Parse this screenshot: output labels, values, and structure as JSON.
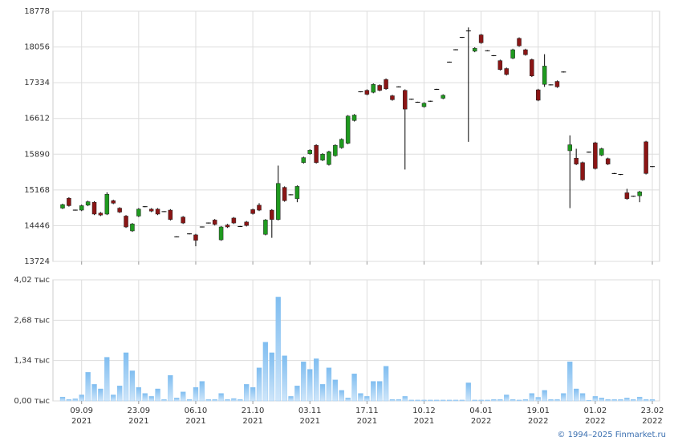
{
  "chart_data": [
    {
      "type": "candlestick",
      "up_color": "#1f9a1f",
      "down_color": "#8b1515",
      "grid": true,
      "ylim": [
        13724,
        18778
      ],
      "yticks": [
        13724,
        14446,
        15168,
        15890,
        16612,
        17334,
        18056,
        18778
      ],
      "open": [
        14800,
        15000,
        14760,
        14760,
        14860,
        14920,
        14700,
        14680,
        14950,
        14800,
        14640,
        14340,
        14640,
        14830,
        14780,
        14780,
        14730,
        14760,
        14220,
        14620,
        14280,
        14260,
        14420,
        14500,
        14560,
        14160,
        14460,
        14600,
        14430,
        14520,
        14770,
        14860,
        14270,
        14760,
        14570,
        15220,
        15070,
        14990,
        15720,
        15900,
        16070,
        15770,
        15680,
        15860,
        16020,
        16110,
        16570,
        17150,
        17180,
        17140,
        17280,
        17400,
        17070,
        17250,
        17180,
        17000,
        16940,
        16850,
        16960,
        17200,
        17020,
        17750,
        18000,
        18250,
        18380,
        17970,
        18300,
        17980,
        17880,
        17780,
        17620,
        17830,
        18230,
        18000,
        17800,
        17190,
        17300,
        17290,
        17360,
        17550,
        15960,
        15810,
        15720,
        15930,
        16120,
        15870,
        15800,
        15500,
        15480,
        15110,
        15040,
        15050,
        16140,
        15640
      ],
      "high": [
        14890,
        15020,
        14770,
        14870,
        14950,
        14940,
        14720,
        15120,
        14970,
        14820,
        14660,
        14500,
        14800,
        14840,
        14800,
        14800,
        14740,
        14780,
        14230,
        14640,
        14290,
        14280,
        14430,
        14510,
        14580,
        14440,
        14480,
        14620,
        14440,
        14540,
        14790,
        14900,
        14580,
        14780,
        15660,
        15240,
        15080,
        15260,
        15840,
        15990,
        16090,
        15910,
        15960,
        16090,
        16210,
        16680,
        16700,
        17160,
        17200,
        17320,
        17300,
        17420,
        17090,
        17260,
        17200,
        17010,
        16950,
        16940,
        16970,
        17210,
        17100,
        17760,
        18010,
        18260,
        18450,
        18050,
        18320,
        17990,
        17890,
        17800,
        17640,
        18020,
        18250,
        18020,
        17820,
        17210,
        17910,
        17300,
        17380,
        17560,
        16270,
        16000,
        15740,
        15940,
        16140,
        16020,
        15820,
        15510,
        15490,
        15190,
        15050,
        15150,
        16160,
        15650
      ],
      "low": [
        14780,
        14830,
        14750,
        14740,
        14840,
        14660,
        14640,
        14660,
        14880,
        14700,
        14400,
        14320,
        14620,
        14820,
        14720,
        14660,
        14720,
        14550,
        14210,
        14480,
        14270,
        14030,
        14410,
        14490,
        14450,
        14140,
        14400,
        14480,
        14420,
        14430,
        14670,
        14740,
        14250,
        14200,
        14550,
        14930,
        15060,
        14920,
        15700,
        15880,
        15700,
        15750,
        15660,
        15840,
        16000,
        16090,
        16550,
        17140,
        17080,
        17120,
        17160,
        17190,
        16970,
        17240,
        15580,
        16990,
        16930,
        16830,
        16950,
        17190,
        17000,
        17740,
        17990,
        18240,
        16140,
        17950,
        18120,
        17970,
        17870,
        17580,
        17480,
        17810,
        18060,
        17880,
        17450,
        16960,
        17250,
        17280,
        17230,
        17540,
        14800,
        15670,
        15350,
        15920,
        15580,
        15850,
        15670,
        15490,
        15470,
        14970,
        15030,
        14920,
        15480,
        15630
      ],
      "close": [
        14870,
        14850,
        14760,
        14850,
        14930,
        14680,
        14660,
        15080,
        14900,
        14720,
        14420,
        14480,
        14780,
        14830,
        14740,
        14680,
        14730,
        14570,
        14220,
        14500,
        14280,
        14150,
        14420,
        14500,
        14470,
        14420,
        14420,
        14500,
        14430,
        14450,
        14690,
        14760,
        14560,
        14570,
        15300,
        14950,
        15070,
        15240,
        15820,
        15970,
        15720,
        15890,
        15940,
        16070,
        16190,
        16660,
        16680,
        17150,
        17100,
        17300,
        17180,
        17210,
        16990,
        17250,
        16800,
        17000,
        16940,
        16920,
        16960,
        17200,
        17080,
        17750,
        18000,
        18250,
        18380,
        18030,
        18140,
        17980,
        17880,
        17600,
        17500,
        18000,
        18080,
        17900,
        17470,
        16980,
        17670,
        17290,
        17250,
        17550,
        16080,
        15690,
        15370,
        15930,
        15600,
        16000,
        15690,
        15500,
        15480,
        14990,
        15040,
        15130,
        15500,
        15640
      ]
    },
    {
      "type": "bar",
      "color": "#7fbdf0",
      "grid": true,
      "ylim": [
        0,
        4020
      ],
      "yticks": [
        {
          "value": 0,
          "label": "0,00 тыс"
        },
        {
          "value": 1340,
          "label": "1,34 тыс"
        },
        {
          "value": 2680,
          "label": "2,68 тыс"
        },
        {
          "value": 4020,
          "label": "4,02 тыс"
        }
      ],
      "categories": [
        null,
        null,
        null,
        {
          "date": "09.09",
          "year": "2021"
        },
        null,
        null,
        null,
        null,
        null,
        null,
        null,
        null,
        {
          "date": "23.09",
          "year": "2021"
        },
        null,
        null,
        null,
        null,
        null,
        null,
        null,
        null,
        {
          "date": "06.10",
          "year": "2021"
        },
        null,
        null,
        null,
        null,
        null,
        null,
        null,
        null,
        {
          "date": "21.10",
          "year": "2021"
        },
        null,
        null,
        null,
        null,
        null,
        null,
        null,
        null,
        {
          "date": "03.11",
          "year": "2021"
        },
        null,
        null,
        null,
        null,
        null,
        null,
        null,
        null,
        {
          "date": "17.11",
          "year": "2021"
        },
        null,
        null,
        null,
        null,
        null,
        null,
        null,
        null,
        {
          "date": "10.12",
          "year": "2021"
        },
        null,
        null,
        null,
        null,
        null,
        null,
        null,
        null,
        {
          "date": "04.01",
          "year": "2022"
        },
        null,
        null,
        null,
        null,
        null,
        null,
        null,
        null,
        {
          "date": "19.01",
          "year": "2022"
        },
        null,
        null,
        null,
        null,
        null,
        null,
        null,
        null,
        {
          "date": "01.02",
          "year": "2022"
        },
        null,
        null,
        null,
        null,
        null,
        null,
        null,
        null,
        {
          "date": "23.02",
          "year": "2022"
        }
      ],
      "values": [
        130,
        50,
        70,
        200,
        950,
        550,
        400,
        1450,
        200,
        500,
        1600,
        1000,
        450,
        250,
        150,
        400,
        50,
        850,
        100,
        300,
        50,
        450,
        650,
        50,
        50,
        250,
        50,
        80,
        50,
        550,
        450,
        1100,
        1950,
        1600,
        3450,
        1500,
        150,
        500,
        1300,
        1050,
        1400,
        550,
        1100,
        700,
        350,
        100,
        900,
        250,
        150,
        650,
        650,
        1150,
        50,
        50,
        150,
        30,
        30,
        30,
        30,
        30,
        30,
        30,
        30,
        30,
        600,
        30,
        30,
        30,
        50,
        50,
        200,
        50,
        30,
        50,
        250,
        120,
        350,
        50,
        50,
        250,
        1300,
        400,
        250,
        20,
        150,
        100,
        50,
        50,
        50,
        100,
        50,
        130,
        50,
        50
      ]
    }
  ],
  "copyright": "© 1994–2025 Finmarket.ru"
}
